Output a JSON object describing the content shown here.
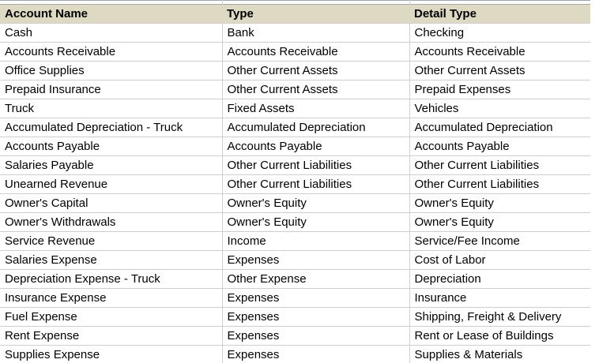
{
  "sheet": {
    "header": {
      "columns": [
        "Account Name",
        "Type",
        "Detail Type"
      ]
    },
    "rows": [
      {
        "account_name": "Cash",
        "type": "Bank",
        "detail_type": "Checking"
      },
      {
        "account_name": "Accounts Receivable",
        "type": "Accounts Receivable",
        "detail_type": "Accounts Receivable"
      },
      {
        "account_name": "Office Supplies",
        "type": "Other Current Assets",
        "detail_type": "Other Current Assets"
      },
      {
        "account_name": "Prepaid Insurance",
        "type": "Other Current Assets",
        "detail_type": "Prepaid Expenses"
      },
      {
        "account_name": "Truck",
        "type": "Fixed Assets",
        "detail_type": "Vehicles"
      },
      {
        "account_name": "Accumulated Depreciation - Truck",
        "type": "Accumulated Depreciation",
        "detail_type": "Accumulated Depreciation"
      },
      {
        "account_name": "Accounts Payable",
        "type": "Accounts Payable",
        "detail_type": "Accounts Payable"
      },
      {
        "account_name": "Salaries Payable",
        "type": "Other Current Liabilities",
        "detail_type": "Other Current Liabilities"
      },
      {
        "account_name": "Unearned Revenue",
        "type": "Other Current Liabilities",
        "detail_type": "Other Current Liabilities"
      },
      {
        "account_name": "Owner's Capital",
        "type": "Owner's Equity",
        "detail_type": "Owner's Equity"
      },
      {
        "account_name": "Owner's Withdrawals",
        "type": "Owner's Equity",
        "detail_type": "Owner's Equity"
      },
      {
        "account_name": "Service Revenue",
        "type": "Income",
        "detail_type": "Service/Fee Income"
      },
      {
        "account_name": "Salaries Expense",
        "type": "Expenses",
        "detail_type": "Cost of Labor"
      },
      {
        "account_name": "Depreciation Expense - Truck",
        "type": "Other Expense",
        "detail_type": "Depreciation"
      },
      {
        "account_name": "Insurance Expense",
        "type": "Expenses",
        "detail_type": "Insurance"
      },
      {
        "account_name": "Fuel Expense",
        "type": "Expenses",
        "detail_type": "Shipping, Freight & Delivery"
      },
      {
        "account_name": "Rent Expense",
        "type": "Expenses",
        "detail_type": "Rent or Lease of Buildings"
      },
      {
        "account_name": "Supplies Expense",
        "type": "Expenses",
        "detail_type": "Supplies & Materials"
      }
    ]
  },
  "colors": {
    "header_bg": "#ddd9c3",
    "grid_line": "#d0cece",
    "top_line": "#9ea3ab",
    "header_top_line": "#a6a6a6",
    "text": "#000000"
  }
}
